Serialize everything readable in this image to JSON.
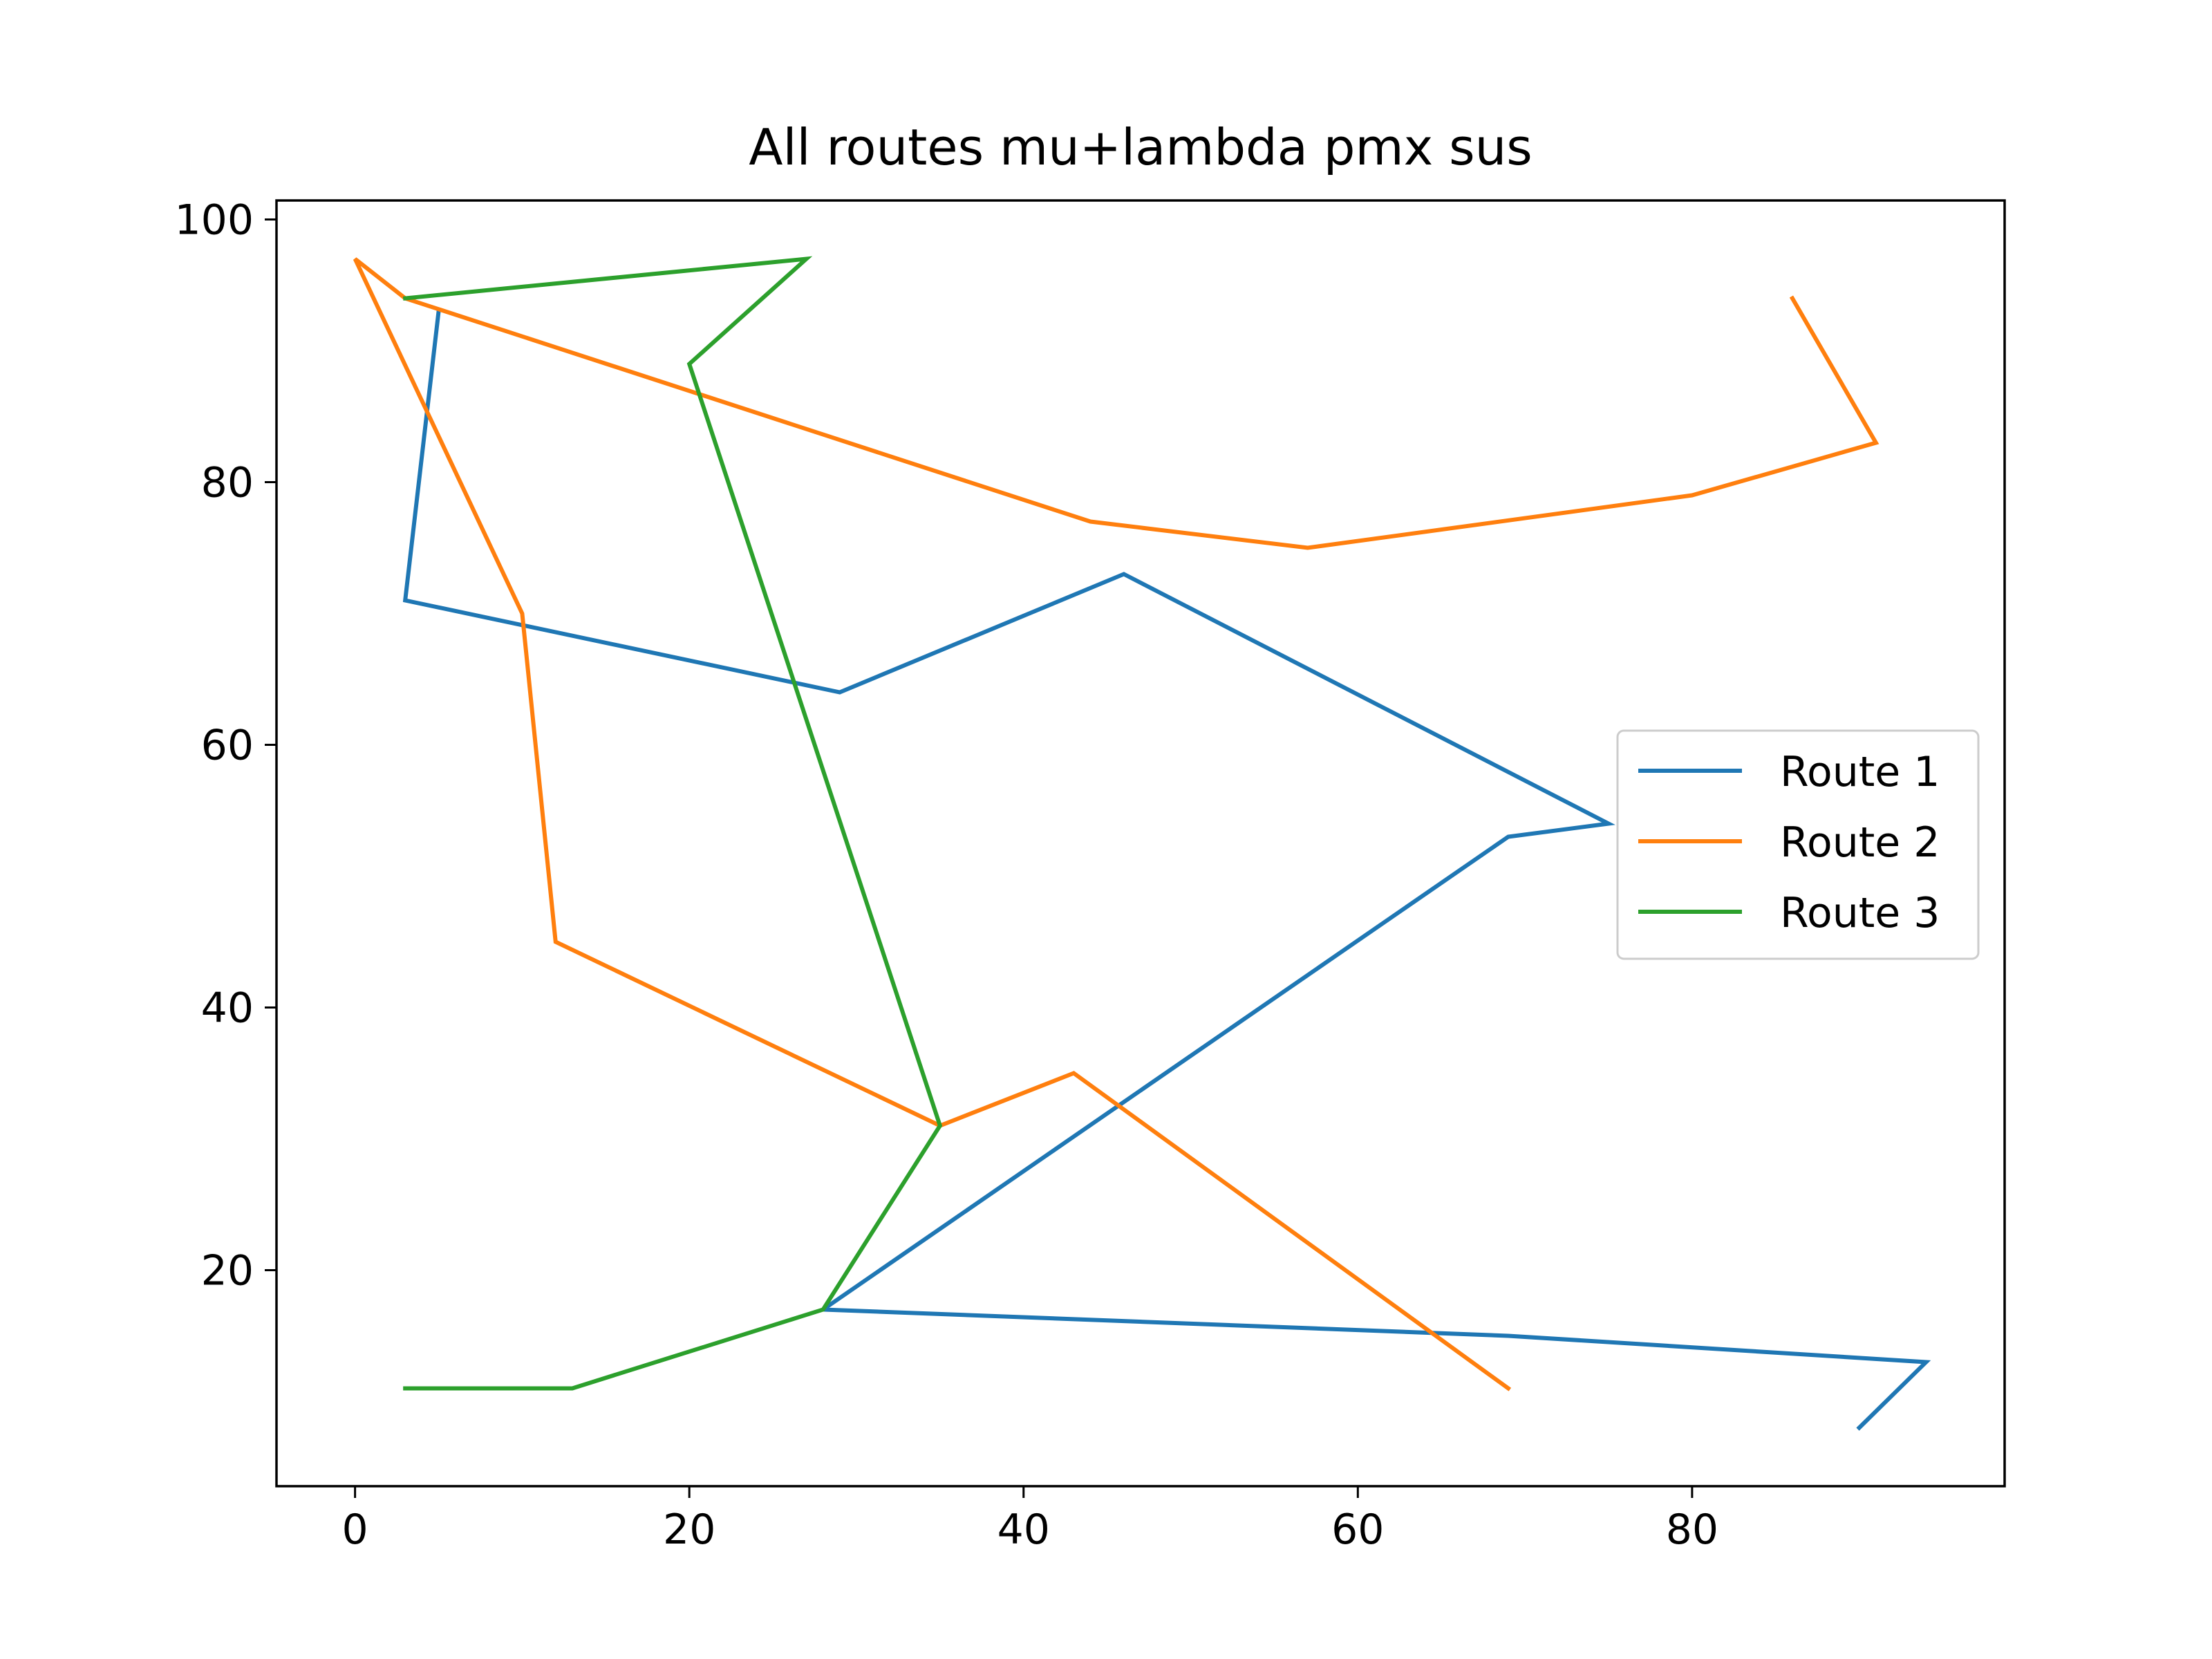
{
  "chart_data": {
    "type": "line",
    "title": "All routes mu+lambda pmx sus",
    "xlabel": "",
    "ylabel": "",
    "xlim": [
      -4.7,
      98.7
    ],
    "ylim": [
      3.55,
      101.45
    ],
    "xticks": [
      0,
      20,
      40,
      60,
      80
    ],
    "yticks": [
      20,
      40,
      60,
      80,
      100
    ],
    "grid": false,
    "legend_position": "center-right",
    "series": [
      {
        "name": "Route 1",
        "color": "#1f77b4",
        "points": [
          [
            5,
            93
          ],
          [
            3,
            71
          ],
          [
            29,
            64
          ],
          [
            46,
            73
          ],
          [
            75,
            54
          ],
          [
            69,
            53
          ],
          [
            28,
            17
          ],
          [
            69,
            15
          ],
          [
            94,
            13
          ],
          [
            90,
            8
          ]
        ]
      },
      {
        "name": "Route 2",
        "color": "#ff7f0e",
        "points": [
          [
            86,
            94
          ],
          [
            91,
            83
          ],
          [
            80,
            79
          ],
          [
            57,
            75
          ],
          [
            44,
            77
          ],
          [
            3,
            94
          ],
          [
            0,
            97
          ],
          [
            10,
            70
          ],
          [
            12,
            45
          ],
          [
            35,
            31
          ],
          [
            43,
            35
          ],
          [
            69,
            11
          ]
        ]
      },
      {
        "name": "Route 3",
        "color": "#2ca02c",
        "points": [
          [
            3,
            11
          ],
          [
            13,
            11
          ],
          [
            28,
            17
          ],
          [
            35,
            31
          ],
          [
            20,
            89
          ],
          [
            27,
            97
          ],
          [
            3,
            94
          ]
        ]
      }
    ]
  }
}
